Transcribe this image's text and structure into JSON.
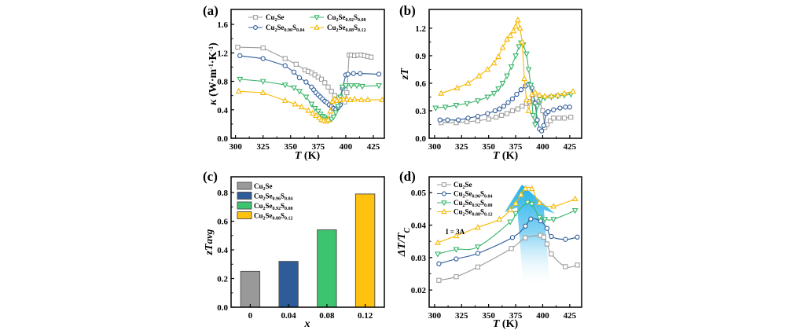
{
  "chart_data": [
    {
      "id": "a",
      "type": "line",
      "panel_label": "(a)",
      "xlabel": "T (K)",
      "ylabel": "κ (W·m⁻¹·K⁻¹)",
      "xlim": [
        296,
        435
      ],
      "ylim": [
        0,
        1.81
      ],
      "xticks": [
        300,
        325,
        350,
        375,
        400,
        425
      ],
      "yticks": [
        0.0,
        0.4,
        0.8,
        1.2,
        1.6
      ],
      "ytick_labels": [
        "0.0",
        "0.4",
        "0.8",
        "1.2",
        "1.6"
      ],
      "legend_placement": "top",
      "series": [
        {
          "name": "Cu2Se",
          "base": "Cu",
          "sub1": "2",
          "mid": "Se",
          "sub2": "",
          "tail": "",
          "sub3": "",
          "color": "#999999",
          "marker": "square",
          "x": [
            302,
            325,
            345,
            355,
            363,
            366,
            369,
            372,
            375,
            378,
            381,
            384,
            387,
            390,
            393,
            396,
            399,
            401,
            403,
            405,
            408,
            411,
            414,
            417,
            420,
            423
          ],
          "y": [
            1.28,
            1.27,
            1.12,
            1.04,
            0.96,
            0.94,
            0.92,
            0.89,
            0.86,
            0.83,
            0.78,
            0.72,
            0.66,
            0.6,
            0.55,
            0.52,
            0.51,
            0.64,
            1.17,
            1.17,
            1.16,
            1.17,
            1.17,
            1.16,
            1.15,
            1.14
          ]
        },
        {
          "name": "Cu2Se0.96S0.04",
          "base": "Cu",
          "sub1": "2",
          "mid": "Se",
          "sub2": "0.96",
          "tail": "S",
          "sub3": "0.04",
          "color": "#2e5c99",
          "marker": "circle",
          "x": [
            304,
            325,
            345,
            353,
            358,
            364,
            369,
            371,
            373,
            375,
            377,
            379,
            381,
            383,
            385,
            387,
            389,
            391,
            393,
            395,
            397,
            400,
            402,
            407,
            413,
            430
          ],
          "y": [
            1.16,
            1.12,
            1.02,
            0.93,
            0.85,
            0.79,
            0.72,
            0.68,
            0.64,
            0.61,
            0.58,
            0.55,
            0.52,
            0.5,
            0.47,
            0.45,
            0.42,
            0.41,
            0.43,
            0.47,
            0.7,
            0.89,
            0.9,
            0.91,
            0.91,
            0.9
          ]
        },
        {
          "name": "Cu2Se0.92S0.08",
          "base": "Cu",
          "sub1": "2",
          "mid": "Se",
          "sub2": "0.92",
          "tail": "S",
          "sub3": "0.08",
          "color": "#3ab56a",
          "marker": "triangle-down",
          "x": [
            304,
            325,
            345,
            353,
            358,
            364,
            369,
            372,
            375,
            377,
            379,
            381,
            383,
            385,
            387,
            389,
            391,
            393,
            395,
            397,
            400,
            405,
            410,
            415,
            430
          ],
          "y": [
            0.83,
            0.8,
            0.75,
            0.71,
            0.66,
            0.58,
            0.48,
            0.42,
            0.38,
            0.34,
            0.31,
            0.29,
            0.27,
            0.26,
            0.27,
            0.3,
            0.36,
            0.45,
            0.58,
            0.72,
            0.74,
            0.74,
            0.74,
            0.73,
            0.74
          ]
        },
        {
          "name": "Cu2Se0.88S0.12",
          "base": "Cu",
          "sub1": "2",
          "mid": "Se",
          "sub2": "0.88",
          "tail": "S",
          "sub3": "0.12",
          "color": "#f5b800",
          "marker": "triangle-up",
          "x": [
            303,
            325,
            345,
            354,
            360,
            366,
            370,
            373,
            376,
            378,
            380,
            382,
            384,
            386,
            388,
            390,
            392,
            395,
            398,
            401,
            404,
            408,
            414,
            420,
            433
          ],
          "y": [
            0.66,
            0.64,
            0.53,
            0.48,
            0.44,
            0.39,
            0.35,
            0.32,
            0.29,
            0.26,
            0.25,
            0.24,
            0.26,
            0.38,
            0.52,
            0.55,
            0.53,
            0.54,
            0.55,
            0.55,
            0.54,
            0.55,
            0.54,
            0.54,
            0.54
          ]
        }
      ]
    },
    {
      "id": "b",
      "type": "line",
      "panel_label": "(b)",
      "xlabel": "T (K)",
      "ylabel": "zT",
      "xlim": [
        295,
        436
      ],
      "ylim": [
        0,
        1.405
      ],
      "xticks": [
        300,
        325,
        350,
        375,
        400,
        425
      ],
      "yticks": [
        0.0,
        0.3,
        0.6,
        0.9,
        1.2
      ],
      "ytick_labels": [
        "0.0",
        "0.3",
        "0.6",
        "0.9",
        "1.2"
      ],
      "series": [
        {
          "name": "Cu2Se",
          "color": "#999999",
          "marker": "square",
          "x": [
            306,
            320,
            330,
            340,
            350,
            357,
            362,
            367,
            372,
            377,
            381,
            385,
            388,
            391,
            394,
            397,
            400,
            402,
            404,
            407,
            410,
            415,
            420,
            426
          ],
          "y": [
            0.17,
            0.17,
            0.18,
            0.19,
            0.21,
            0.23,
            0.25,
            0.27,
            0.3,
            0.32,
            0.35,
            0.38,
            0.4,
            0.43,
            0.44,
            0.4,
            0.3,
            0.12,
            0.15,
            0.19,
            0.22,
            0.22,
            0.22,
            0.23
          ]
        },
        {
          "name": "Cu2Se0.96S0.04",
          "color": "#2e5c99",
          "marker": "circle",
          "x": [
            305,
            312,
            322,
            331,
            340,
            349,
            356,
            360,
            364,
            368,
            372,
            376,
            380,
            384,
            387,
            390,
            393,
            395,
            397,
            399,
            401,
            403,
            405,
            410,
            416,
            421,
            425
          ],
          "y": [
            0.2,
            0.2,
            0.2,
            0.22,
            0.24,
            0.27,
            0.3,
            0.32,
            0.35,
            0.39,
            0.43,
            0.48,
            0.53,
            0.57,
            0.59,
            0.55,
            0.38,
            0.2,
            0.1,
            0.08,
            0.14,
            0.27,
            0.29,
            0.31,
            0.33,
            0.34,
            0.34
          ]
        },
        {
          "name": "Cu2Se0.92S0.08",
          "color": "#3ab56a",
          "marker": "triangle-down",
          "x": [
            301,
            310,
            320,
            330,
            340,
            349,
            355,
            359,
            363,
            367,
            371,
            375,
            378,
            380,
            382,
            385,
            387,
            389,
            391,
            393,
            395,
            398,
            402,
            408,
            414,
            420,
            426
          ],
          "y": [
            0.33,
            0.34,
            0.36,
            0.38,
            0.41,
            0.45,
            0.49,
            0.54,
            0.6,
            0.68,
            0.78,
            0.9,
            1.0,
            1.04,
            1.02,
            0.92,
            0.75,
            0.58,
            0.25,
            0.15,
            0.35,
            0.42,
            0.44,
            0.45,
            0.46,
            0.47,
            0.48
          ]
        },
        {
          "name": "Cu2Se0.88S0.12",
          "color": "#f5b800",
          "marker": "triangle-up",
          "x": [
            306,
            321,
            331,
            341,
            349,
            355,
            359,
            363,
            367,
            370,
            373,
            375,
            377,
            379,
            381,
            383,
            385,
            387,
            390,
            393,
            397,
            402,
            408,
            414,
            420,
            428
          ],
          "y": [
            0.49,
            0.55,
            0.6,
            0.68,
            0.75,
            0.82,
            0.89,
            0.99,
            1.08,
            1.12,
            1.17,
            1.22,
            1.29,
            1.2,
            1.05,
            0.65,
            0.42,
            0.3,
            0.48,
            0.5,
            0.47,
            0.46,
            0.46,
            0.47,
            0.49,
            0.51
          ]
        }
      ]
    },
    {
      "id": "c",
      "type": "bar",
      "panel_label": "(c)",
      "xlabel": "x",
      "ylabel": "zTavg",
      "ylim": [
        0,
        0.91
      ],
      "yticks": [
        0.0,
        0.2,
        0.4,
        0.6,
        0.8
      ],
      "ytick_labels": [
        "0.0",
        "0.2",
        "0.4",
        "0.6",
        "0.8"
      ],
      "categories": [
        "0",
        "0.04",
        "0.08",
        "0.12"
      ],
      "values": [
        0.25,
        0.32,
        0.54,
        0.79
      ],
      "colors": [
        "#999999",
        "#2e5c99",
        "#3dc46e",
        "#ffc20e"
      ],
      "legend_placement": "top-left",
      "legend": [
        {
          "base": "Cu",
          "sub1": "2",
          "mid": "Se",
          "sub2": "",
          "tail": "",
          "sub3": ""
        },
        {
          "base": "Cu",
          "sub1": "2",
          "mid": "Se",
          "sub2": "0.96",
          "tail": "S",
          "sub3": "0.04"
        },
        {
          "base": "Cu",
          "sub1": "2",
          "mid": "Se",
          "sub2": "0.92",
          "tail": "S",
          "sub3": "0.08"
        },
        {
          "base": "Cu",
          "sub1": "2",
          "mid": "Se",
          "sub2": "0.88",
          "tail": "S",
          "sub3": "0.12"
        }
      ]
    },
    {
      "id": "d",
      "type": "line",
      "panel_label": "(d)",
      "xlabel": "T (K)",
      "ylabel": "ΔT/Tc",
      "xlim": [
        295,
        436
      ],
      "ylim": [
        0.0147,
        0.0549
      ],
      "xticks": [
        300,
        325,
        350,
        375,
        400,
        425
      ],
      "yticks": [
        0.02,
        0.03,
        0.04,
        0.05
      ],
      "ytick_labels": [
        "0.02",
        "0.03",
        "0.04",
        "0.05"
      ],
      "annotation": "I = 3A",
      "legend_placement": "top-left",
      "series": [
        {
          "name": "Cu2Se",
          "color": "#999999",
          "marker": "square",
          "x": [
            304,
            320,
            340,
            371,
            384,
            398,
            401,
            404,
            408,
            421,
            432
          ],
          "y": [
            0.023,
            0.0241,
            0.0271,
            0.0328,
            0.0361,
            0.0368,
            0.0363,
            0.0342,
            0.0311,
            0.0272,
            0.0277
          ]
        },
        {
          "name": "Cu2Se0.96S0.04",
          "color": "#2e5c99",
          "marker": "circle",
          "x": [
            304,
            320,
            340,
            372,
            384,
            389,
            398,
            404,
            408,
            421,
            432
          ],
          "y": [
            0.0281,
            0.0296,
            0.0313,
            0.0362,
            0.0397,
            0.0419,
            0.0413,
            0.039,
            0.0365,
            0.0356,
            0.0363
          ]
        },
        {
          "name": "Cu2Se0.92S0.08",
          "color": "#3ab56a",
          "marker": "triangle-down",
          "x": [
            303,
            320,
            340,
            370,
            375,
            386,
            390,
            397,
            402,
            410,
            430
          ],
          "y": [
            0.0311,
            0.0325,
            0.0333,
            0.041,
            0.0436,
            0.047,
            0.0465,
            0.0424,
            0.0418,
            0.0418,
            0.0445
          ]
        },
        {
          "name": "Cu2Se0.88S0.12",
          "color": "#f5b800",
          "marker": "triangle-up",
          "x": [
            303,
            320,
            340,
            360,
            370,
            375,
            380,
            384,
            390,
            397,
            410,
            430
          ],
          "y": [
            0.0346,
            0.0367,
            0.0393,
            0.0418,
            0.0447,
            0.0467,
            0.0494,
            0.0513,
            0.0512,
            0.0469,
            0.0458,
            0.0481
          ]
        }
      ]
    }
  ]
}
